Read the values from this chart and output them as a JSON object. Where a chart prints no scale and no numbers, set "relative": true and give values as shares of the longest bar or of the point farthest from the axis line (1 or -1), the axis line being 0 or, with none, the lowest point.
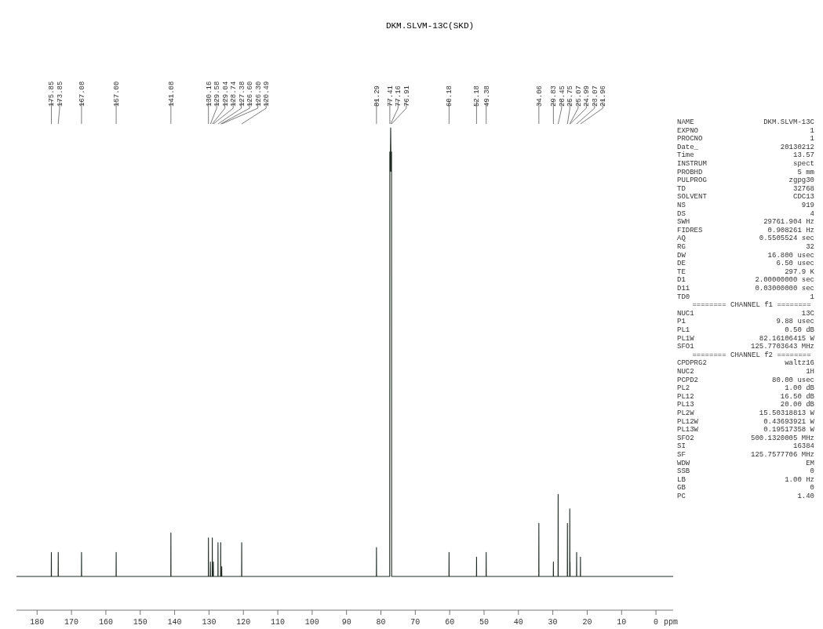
{
  "chart_data": [
    {
      "type": "line",
      "title": "DKM.SLVM-13C(SKD)",
      "xlabel": "ppm",
      "relative": true,
      "xlim": [
        186,
        -5
      ],
      "xticks": [
        180,
        170,
        160,
        150,
        140,
        130,
        120,
        110,
        100,
        90,
        80,
        70,
        60,
        50,
        40,
        30,
        20,
        10,
        0
      ],
      "grid": false,
      "line_style": "solid",
      "tick_labels": "x",
      "annotations": [
        {
          "text": "175.85",
          "x": 175.85
        },
        {
          "text": "173.85",
          "x": 173.85
        },
        {
          "text": "167.08",
          "x": 167.08
        },
        {
          "text": "157.00",
          "x": 157.0
        },
        {
          "text": "141.08",
          "x": 141.08
        },
        {
          "text": "130.16",
          "x": 130.16
        },
        {
          "text": "129.58",
          "x": 129.58
        },
        {
          "text": "129.04",
          "x": 129.04
        },
        {
          "text": "128.74",
          "x": 128.74
        },
        {
          "text": "127.38",
          "x": 127.38
        },
        {
          "text": "126.60",
          "x": 126.6
        },
        {
          "text": "126.30",
          "x": 126.3
        },
        {
          "text": "120.49",
          "x": 120.49
        },
        {
          "text": "81.29",
          "x": 81.29
        },
        {
          "text": "77.41",
          "x": 77.41
        },
        {
          "text": "77.16",
          "x": 77.16
        },
        {
          "text": "76.91",
          "x": 76.91
        },
        {
          "text": "60.18",
          "x": 60.18
        },
        {
          "text": "52.18",
          "x": 52.18
        },
        {
          "text": "49.38",
          "x": 49.38
        },
        {
          "text": "34.06",
          "x": 34.06
        },
        {
          "text": "29.83",
          "x": 29.83
        },
        {
          "text": "28.45",
          "x": 28.45
        },
        {
          "text": "25.75",
          "x": 25.75
        },
        {
          "text": "25.07",
          "x": 25.07
        },
        {
          "text": "24.99",
          "x": 24.99
        },
        {
          "text": "23.07",
          "x": 23.07
        },
        {
          "text": "21.96",
          "x": 21.96
        }
      ],
      "series": [
        {
          "color": "#1e2a22",
          "x": [
            186,
            175.88,
            175.85,
            175.82,
            173.88,
            173.85,
            173.82,
            167.11,
            167.08,
            167.05,
            157.03,
            157.0,
            156.97,
            141.11,
            141.08,
            141.05,
            130.19,
            130.16,
            130.13,
            129.61,
            129.58,
            129.55,
            129.07,
            129.04,
            129.01,
            128.77,
            128.74,
            128.71,
            127.41,
            127.38,
            127.35,
            126.63,
            126.6,
            126.57,
            126.33,
            126.3,
            126.27,
            120.52,
            120.49,
            120.46,
            81.32,
            81.29,
            81.26,
            77.44,
            77.41,
            77.29,
            77.16,
            77.04,
            76.91,
            76.88,
            60.21,
            60.18,
            60.15,
            52.21,
            52.18,
            52.15,
            49.41,
            49.38,
            49.35,
            34.09,
            34.06,
            34.03,
            29.86,
            29.83,
            29.8,
            28.48,
            28.45,
            28.42,
            25.78,
            25.75,
            25.72,
            25.1,
            25.07,
            25.03,
            24.99,
            24.96,
            23.1,
            23.07,
            23.04,
            21.99,
            21.96,
            21.93,
            -5
          ],
          "values": [
            0.07,
            0.07,
            0.12,
            0.07,
            0.07,
            0.12,
            0.07,
            0.07,
            0.12,
            0.07,
            0.07,
            0.12,
            0.07,
            0.07,
            0.16,
            0.07,
            0.07,
            0.15,
            0.07,
            0.07,
            0.1,
            0.07,
            0.07,
            0.15,
            0.07,
            0.07,
            0.1,
            0.07,
            0.07,
            0.14,
            0.07,
            0.07,
            0.14,
            0.07,
            0.07,
            0.09,
            0.07,
            0.07,
            0.14,
            0.07,
            0.07,
            0.13,
            0.07,
            0.07,
            0.95,
            0.91,
            1,
            0.91,
            0.95,
            0.07,
            0.07,
            0.12,
            0.07,
            0.07,
            0.11,
            0.07,
            0.07,
            0.12,
            0.07,
            0.07,
            0.18,
            0.07,
            0.07,
            0.1,
            0.07,
            0.07,
            0.24,
            0.07,
            0.07,
            0.18,
            0.07,
            0.07,
            0.21,
            0.09,
            0.1,
            0.07,
            0.07,
            0.12,
            0.07,
            0.07,
            0.11,
            0.07,
            0.07
          ]
        }
      ]
    },
    {
      "type": "other",
      "categories": [
        "NAME",
        "EXPNO",
        "PROCNO",
        "Date_",
        "Time",
        "INSTRUM",
        "PROBHD",
        "PULPROG",
        "TD",
        "SOLVENT",
        "NS",
        "DS",
        "SWH",
        "FIDRES",
        "AQ",
        "RG",
        "DW",
        "DE",
        "TE",
        "D1",
        "D11",
        "TD0",
        null,
        "NUC1",
        "P1",
        "PL1",
        "PL1W",
        "SFO1",
        null,
        "CPDPRG2",
        "NUC2",
        "PCPD2",
        "PL2",
        "PL12",
        "PL13",
        "PL2W",
        "PL12W",
        "PL13W",
        "SFO2",
        "SI",
        "SF",
        "WDW",
        "SSB",
        "LB",
        "GB",
        "PC"
      ],
      "annotations": [
        "DKM.SLVM-13C",
        "1",
        "1",
        "20130212",
        "13.57",
        "spect",
        "5 mm",
        "zgpg30",
        "32768",
        "CDC13",
        "919",
        "4",
        "29761.904 Hz",
        "0.908261 Hz",
        "0.5505524 sec",
        "32",
        "16.800 usec",
        "6.50 usec",
        "297.9 K",
        "2.00000000 sec",
        "0.03000000 sec",
        "1",
        "======== CHANNEL f1 ========",
        "13C",
        "9.88 usec",
        "0.50 dB",
        "82.16106415 W",
        "125.7703643 MHz",
        "======== CHANNEL f2 ========",
        "waltz16",
        "1H",
        "80.00 usec",
        "1.00 dB",
        "16.50 dB",
        "20.00 dB",
        "15.50318813 W",
        "0.43693921 W",
        "0.19517358 W",
        "500.1320005 MHz",
        "16384",
        "125.7577706 MHz",
        "EM",
        "0",
        "1.00 Hz",
        "0",
        "1.40"
      ]
    }
  ]
}
